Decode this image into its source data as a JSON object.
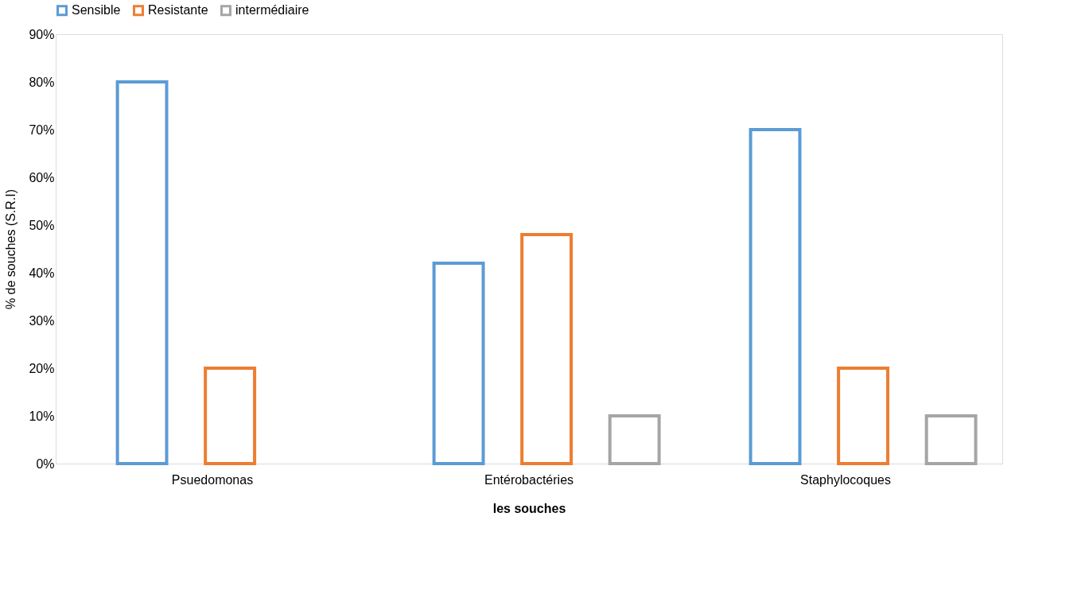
{
  "chart_data": {
    "type": "bar",
    "xlabel": "les souches",
    "ylabel": "% de souches (S.R.I)",
    "categories": [
      "Psuedomonas",
      "Entérobactéries",
      "Staphylocoques"
    ],
    "series": [
      {
        "name": "Sensible",
        "color": "#5b9bd5",
        "values": [
          80,
          42,
          70
        ]
      },
      {
        "name": "Resistante",
        "color": "#ed7d31",
        "values": [
          20,
          48,
          20
        ]
      },
      {
        "name": "intermédiaire",
        "color": "#a5a5a5",
        "values": [
          null,
          10,
          10
        ]
      }
    ],
    "ylim": [
      0,
      90
    ],
    "yticks": [
      {
        "value": 0,
        "label": "0%"
      },
      {
        "value": 10,
        "label": "10%"
      },
      {
        "value": 20,
        "label": "20%"
      },
      {
        "value": 30,
        "label": "30%"
      },
      {
        "value": 40,
        "label": "40%"
      },
      {
        "value": 50,
        "label": "50%"
      },
      {
        "value": 60,
        "label": "60%"
      },
      {
        "value": 70,
        "label": "70%"
      },
      {
        "value": 80,
        "label": "80%"
      },
      {
        "value": 90,
        "label": "90%"
      }
    ],
    "grid": false,
    "legend": "top"
  }
}
